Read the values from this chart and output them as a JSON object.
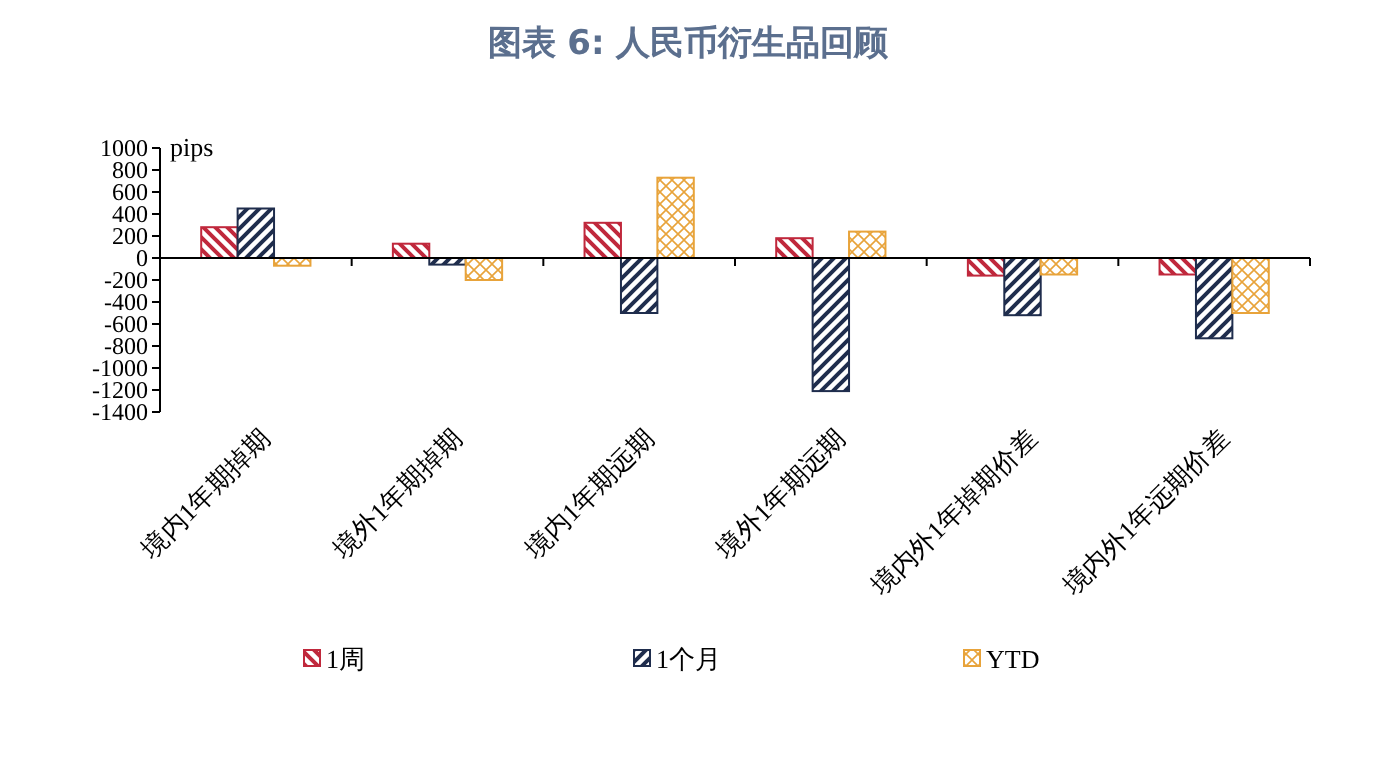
{
  "chart_data": {
    "type": "bar",
    "title": "图表 6: 人民币衍生品回顾",
    "ylabel": "pips",
    "categories": [
      "境内1年期掉期",
      "境外1年期掉期",
      "境内1年期远期",
      "境外1年期远期",
      "境内外1年掉期价差",
      "境内外1年远期价差"
    ],
    "series": [
      {
        "name": "1周",
        "color": "#c0283c",
        "values": [
          280,
          130,
          320,
          180,
          -160,
          -150
        ]
      },
      {
        "name": "1个月",
        "color": "#1f2d4d",
        "values": [
          450,
          -60,
          -500,
          -1210,
          -520,
          -730
        ]
      },
      {
        "name": "YTD",
        "color": "#e8a33a",
        "values": [
          -70,
          -200,
          730,
          240,
          -150,
          -500
        ]
      }
    ],
    "ylim": [
      -1400,
      1000
    ],
    "yticks": [
      -1400,
      -1200,
      -1000,
      -800,
      -600,
      -400,
      -200,
      0,
      200,
      400,
      600,
      800,
      1000
    ],
    "legend": "bottom"
  }
}
